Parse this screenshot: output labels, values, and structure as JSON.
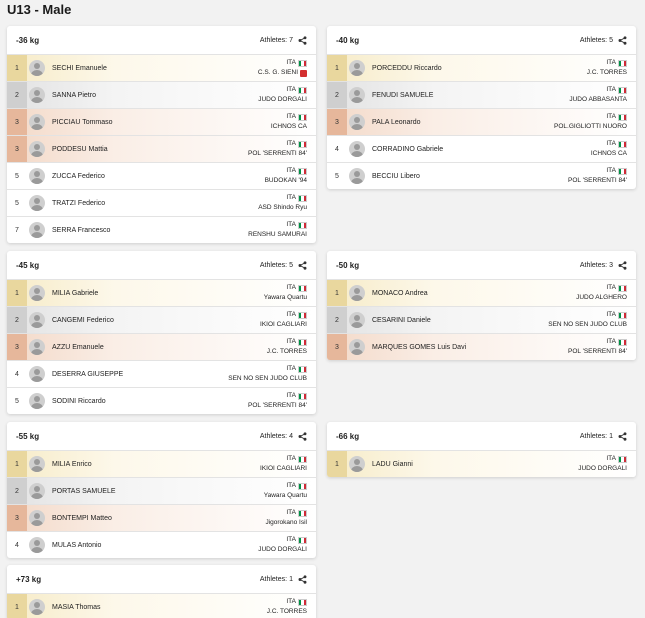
{
  "page_title": "U13 - Male",
  "athletes_label": "Athletes:",
  "colors": {
    "gold": "#e9d79e",
    "silver": "#cfcfcf",
    "bronze": "#e6b79b",
    "flag_green": "#009246",
    "flag_white": "#ffffff",
    "flag_red": "#ce2b37"
  },
  "icons": {
    "share": "share-icon",
    "avatar": "avatar-icon",
    "flag": "flag-italy-icon"
  },
  "categories": [
    {
      "label": "-36 kg",
      "count": "7",
      "rows": [
        {
          "rank": "1",
          "medal": "gold",
          "name": "SECHI Emanuele",
          "nation": "ITA",
          "club": "C.S. G. SIENI",
          "club_logo": true
        },
        {
          "rank": "2",
          "medal": "silver",
          "name": "SANNA Pietro",
          "nation": "ITA",
          "club": "JUDO DORGALI"
        },
        {
          "rank": "3",
          "medal": "bronze",
          "name": "PICCIAU Tommaso",
          "nation": "ITA",
          "club": "ICHNOS CA"
        },
        {
          "rank": "3",
          "medal": "bronze",
          "name": "PODDESU Mattia",
          "nation": "ITA",
          "club": "POL 'SERRENTI 84'"
        },
        {
          "rank": "5",
          "medal": "plain",
          "name": "ZUCCA Federico",
          "nation": "ITA",
          "club": "BUDOKAN '94"
        },
        {
          "rank": "5",
          "medal": "plain",
          "name": "TRATZI Federico",
          "nation": "ITA",
          "club": "ASD Shindo Ryu"
        },
        {
          "rank": "7",
          "medal": "plain",
          "name": "SERRA Francesco",
          "nation": "ITA",
          "club": "RENSHU SAMURAI"
        }
      ]
    },
    {
      "label": "-40 kg",
      "count": "5",
      "rows": [
        {
          "rank": "1",
          "medal": "gold",
          "name": "PORCEDDU Riccardo",
          "nation": "ITA",
          "club": "J.C. TORRES"
        },
        {
          "rank": "2",
          "medal": "silver",
          "name": "FENUDI SAMUELE",
          "nation": "ITA",
          "club": "JUDO ABBASANTA"
        },
        {
          "rank": "3",
          "medal": "bronze",
          "name": "PALA Leonardo",
          "nation": "ITA",
          "club": "POL.GIGLIOTTI NUORO"
        },
        {
          "rank": "4",
          "medal": "plain",
          "name": "CORRADINO Gabriele",
          "nation": "ITA",
          "club": "ICHNOS CA"
        },
        {
          "rank": "5",
          "medal": "plain",
          "name": "BECCIU Libero",
          "nation": "ITA",
          "club": "POL 'SERRENTI 84'"
        }
      ]
    },
    {
      "label": "-45 kg",
      "count": "5",
      "rows": [
        {
          "rank": "1",
          "medal": "gold",
          "name": "MILIA Gabriele",
          "nation": "ITA",
          "club": "Yawara Quartu"
        },
        {
          "rank": "2",
          "medal": "silver",
          "name": "CANGEMI Federico",
          "nation": "ITA",
          "club": "IKIOI CAGLIARI"
        },
        {
          "rank": "3",
          "medal": "bronze",
          "name": "AZZU Emanuele",
          "nation": "ITA",
          "club": "J.C. TORRES"
        },
        {
          "rank": "4",
          "medal": "plain",
          "name": "DESERRA GIUSEPPE",
          "nation": "ITA",
          "club": "SEN NO SEN JUDO CLUB"
        },
        {
          "rank": "5",
          "medal": "plain",
          "name": "SODINI Riccardo",
          "nation": "ITA",
          "club": "POL 'SERRENTI 84'"
        }
      ]
    },
    {
      "label": "-50 kg",
      "count": "3",
      "rows": [
        {
          "rank": "1",
          "medal": "gold",
          "name": "MONACO Andrea",
          "nation": "ITA",
          "club": "JUDO ALGHERO"
        },
        {
          "rank": "2",
          "medal": "silver",
          "name": "CESARINI Daniele",
          "nation": "ITA",
          "club": "SEN NO SEN JUDO CLUB"
        },
        {
          "rank": "3",
          "medal": "bronze",
          "name": "MARQUES GOMES Luis Davi",
          "nation": "ITA",
          "club": "POL 'SERRENTI 84'"
        }
      ]
    },
    {
      "label": "-55 kg",
      "count": "4",
      "rows": [
        {
          "rank": "1",
          "medal": "gold",
          "name": "MILIA Enrico",
          "nation": "ITA",
          "club": "IKIOI CAGLIARI"
        },
        {
          "rank": "2",
          "medal": "silver",
          "name": "PORTAS SAMUELE",
          "nation": "ITA",
          "club": "Yawara Quartu"
        },
        {
          "rank": "3",
          "medal": "bronze",
          "name": "BONTEMPI Matteo",
          "nation": "ITA",
          "club": "Jigorokano Isil"
        },
        {
          "rank": "4",
          "medal": "plain",
          "name": "MULAS Antonio",
          "nation": "ITA",
          "club": "JUDO DORGALI"
        }
      ]
    },
    {
      "label": "-66 kg",
      "count": "1",
      "rows": [
        {
          "rank": "1",
          "medal": "gold",
          "name": "LADU Gianni",
          "nation": "ITA",
          "club": "JUDO DORGALI"
        }
      ]
    },
    {
      "label": "+73 kg",
      "count": "1",
      "rows": [
        {
          "rank": "1",
          "medal": "gold",
          "name": "MASIA Thomas",
          "nation": "ITA",
          "club": "J.C. TORRES"
        }
      ]
    }
  ]
}
